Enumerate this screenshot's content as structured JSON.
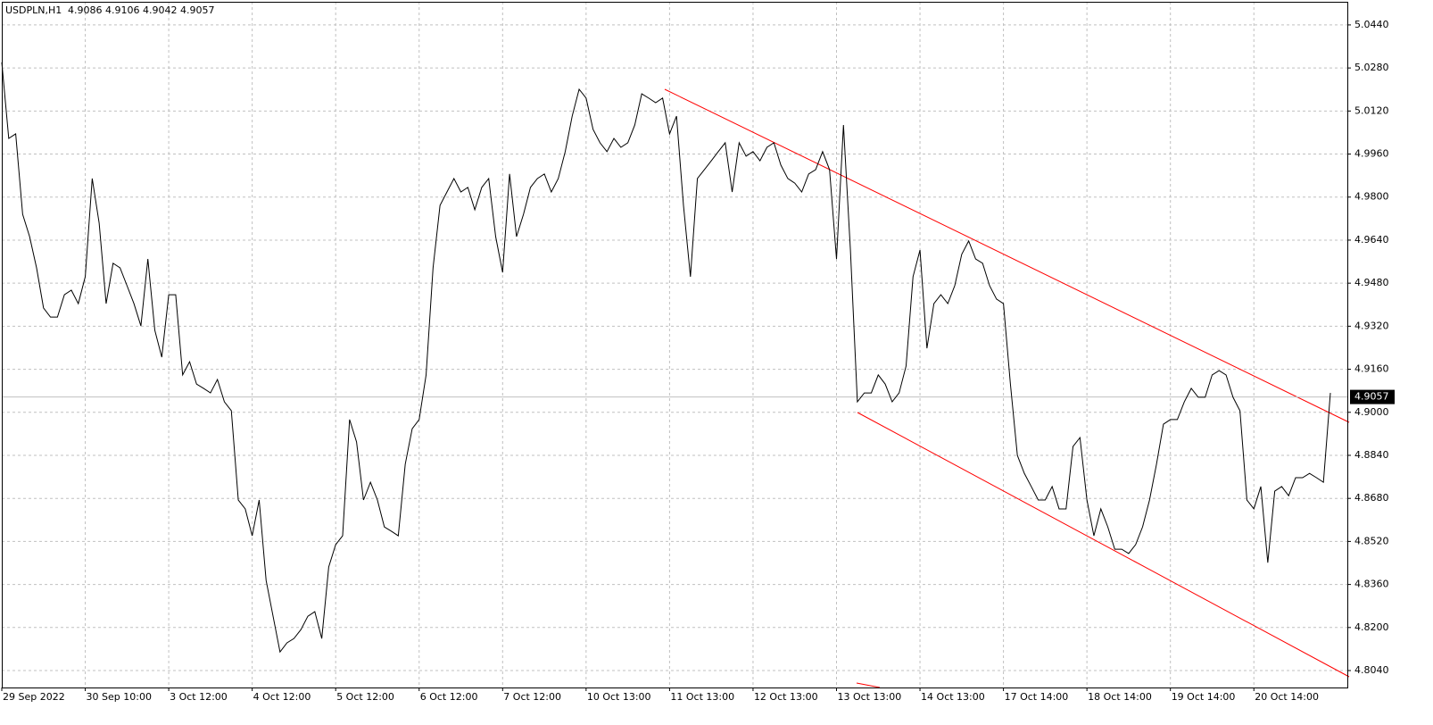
{
  "chart_data": {
    "type": "line",
    "title": "USDPLN,H1",
    "ohlc": [
      4.9086,
      4.9106,
      4.9042,
      4.9057
    ],
    "categories": [
      "29 Sep 2022",
      null,
      null,
      null,
      null,
      null,
      null,
      null,
      null,
      null,
      null,
      null,
      "30 Sep 10:00",
      null,
      null,
      null,
      null,
      null,
      null,
      null,
      null,
      null,
      null,
      null,
      "3 Oct 12:00",
      null,
      null,
      null,
      null,
      null,
      null,
      null,
      null,
      null,
      null,
      null,
      "4 Oct 12:00",
      null,
      null,
      null,
      null,
      null,
      null,
      null,
      null,
      null,
      null,
      null,
      "5 Oct 12:00",
      null,
      null,
      null,
      null,
      null,
      null,
      null,
      null,
      null,
      null,
      null,
      "6 Oct 12:00",
      null,
      null,
      null,
      null,
      null,
      null,
      null,
      null,
      null,
      null,
      null,
      "7 Oct 12:00",
      null,
      null,
      null,
      null,
      null,
      null,
      null,
      null,
      null,
      null,
      null,
      "10 Oct 13:00",
      null,
      null,
      null,
      null,
      null,
      null,
      null,
      null,
      null,
      null,
      null,
      "11 Oct 13:00",
      null,
      null,
      null,
      null,
      null,
      null,
      null,
      null,
      null,
      null,
      null,
      "12 Oct 13:00",
      null,
      null,
      null,
      null,
      null,
      null,
      null,
      null,
      null,
      null,
      null,
      "13 Oct 13:00",
      null,
      null,
      null,
      null,
      null,
      null,
      null,
      null,
      null,
      null,
      null,
      "14 Oct 13:00",
      null,
      null,
      null,
      null,
      null,
      null,
      null,
      null,
      null,
      null,
      null,
      "17 Oct 14:00",
      null,
      null,
      null,
      null,
      null,
      null,
      null,
      null,
      null,
      null,
      null,
      "18 Oct 14:00",
      null,
      null,
      null,
      null,
      null,
      null,
      null,
      null,
      null,
      null,
      null,
      "19 Oct 14:00",
      null,
      null,
      null,
      null,
      null,
      null,
      null,
      null,
      null,
      null,
      null,
      "20 Oct 14:00",
      null,
      null,
      null,
      null,
      null,
      null,
      null,
      null,
      null,
      null,
      null
    ],
    "values": [
      5.0301,
      5.0018,
      5.0035,
      4.9736,
      4.9653,
      4.9537,
      4.9388,
      4.9354,
      4.9354,
      4.9437,
      4.9454,
      4.9404,
      4.9504,
      4.9869,
      4.9703,
      4.9404,
      4.9554,
      4.9537,
      4.9471,
      4.9404,
      4.9321,
      4.957,
      4.9305,
      4.9205,
      4.9437,
      4.9437,
      4.9139,
      4.9188,
      4.9105,
      4.9089,
      4.9072,
      4.9122,
      4.9039,
      4.9006,
      4.8674,
      4.8641,
      4.8541,
      4.8674,
      4.8375,
      4.8242,
      4.8109,
      4.8143,
      4.8159,
      4.8192,
      4.8242,
      4.8259,
      4.8159,
      4.8425,
      4.8508,
      4.8541,
      4.8973,
      4.889,
      4.8674,
      4.874,
      4.8674,
      4.8574,
      4.8558,
      4.8541,
      4.8807,
      4.8939,
      4.8973,
      4.9139,
      4.9537,
      4.9769,
      4.9819,
      4.9869,
      4.9819,
      4.9836,
      4.9753,
      4.9836,
      4.9869,
      4.9653,
      4.952,
      4.9886,
      4.9653,
      4.9736,
      4.9836,
      4.9869,
      4.9886,
      4.9819,
      4.9869,
      4.9969,
      5.0101,
      5.0201,
      5.0168,
      5.0052,
      5.0002,
      4.9969,
      5.0018,
      4.9985,
      5.0002,
      5.0068,
      5.0184,
      5.0168,
      5.0151,
      5.0168,
      5.0035,
      5.0101,
      4.9769,
      4.9504,
      4.9869,
      4.9902,
      4.9935,
      4.9969,
      5.0002,
      4.9819,
      5.0002,
      4.9952,
      4.9969,
      4.9935,
      4.9985,
      5.0002,
      4.9919,
      4.9869,
      4.9852,
      4.9819,
      4.9886,
      4.9902,
      4.9969,
      4.9902,
      4.957,
      5.0068,
      4.9603,
      4.9039,
      4.9072,
      4.9072,
      4.9139,
      4.9105,
      4.9039,
      4.9072,
      4.9172,
      4.9504,
      4.9603,
      4.9238,
      4.9404,
      4.9437,
      4.9404,
      4.9471,
      4.9587,
      4.9637,
      4.957,
      4.9554,
      4.9471,
      4.9421,
      4.9404,
      4.9105,
      4.884,
      4.8773,
      4.8724,
      4.8674,
      4.8674,
      4.8724,
      4.8641,
      4.8641,
      4.8873,
      4.8906,
      4.8674,
      4.8541,
      4.8641,
      4.8574,
      4.8491,
      4.8491,
      4.8475,
      4.8508,
      4.8574,
      4.8674,
      4.8807,
      4.8956,
      4.8973,
      4.8973,
      4.9039,
      4.9089,
      4.9056,
      4.9056,
      4.9139,
      4.9155,
      4.9139,
      4.9056,
      4.9006,
      4.8674,
      4.8641,
      4.8724,
      4.8441,
      4.8707,
      4.8724,
      4.869,
      4.8757,
      4.8757,
      4.8773,
      4.8757,
      4.874,
      4.9072
    ],
    "color": "#000000",
    "ylim": [
      4.7977,
      5.0526
    ],
    "yticks": [
      {
        "value": 4.804,
        "label": "4.8040"
      },
      {
        "value": 4.82,
        "label": "4.8200"
      },
      {
        "value": 4.836,
        "label": "4.8360"
      },
      {
        "value": 4.852,
        "label": "4.8520"
      },
      {
        "value": 4.868,
        "label": "4.8680"
      },
      {
        "value": 4.884,
        "label": "4.8840"
      },
      {
        "value": 4.9,
        "label": "4.9000"
      },
      {
        "value": 4.916,
        "label": "4.9160"
      },
      {
        "value": 4.932,
        "label": "4.9320"
      },
      {
        "value": 4.948,
        "label": "4.9480"
      },
      {
        "value": 4.964,
        "label": "4.9640"
      },
      {
        "value": 4.98,
        "label": "4.9800"
      },
      {
        "value": 4.996,
        "label": "4.9960"
      },
      {
        "value": 5.012,
        "label": "5.0120"
      },
      {
        "value": 5.028,
        "label": "5.0280"
      },
      {
        "value": 5.044,
        "label": "5.0440"
      }
    ],
    "grid": true
  }
}
